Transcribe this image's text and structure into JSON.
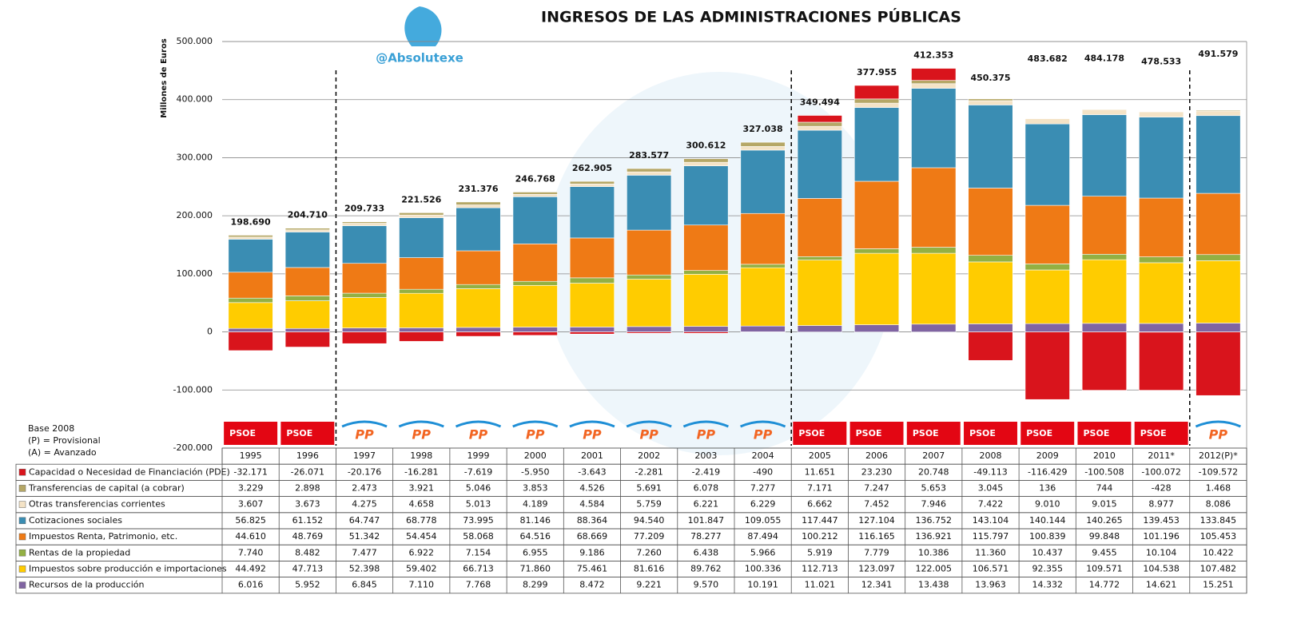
{
  "chart_data": {
    "type": "stacked_bar",
    "title": "INGRESOS DE LAS ADMINISTRACIONES PÚBLICAS",
    "ylabel": "Millones de Euros",
    "watermark": "@Absolutexe",
    "notes": [
      "Base 2008",
      "(P) = Provisional",
      "(A) = Avanzado"
    ],
    "categories": [
      "1995",
      "1996",
      "1997",
      "1998",
      "1999",
      "2000",
      "2001",
      "2002",
      "2003",
      "2004",
      "2005",
      "2006",
      "2007",
      "2008",
      "2009",
      "2010",
      "2011*",
      "2012(P)*"
    ],
    "parties": [
      "PSOE",
      "PSOE",
      "PP",
      "PP",
      "PP",
      "PP",
      "PP",
      "PP",
      "PP",
      "PP",
      "PSOE",
      "PSOE",
      "PSOE",
      "PSOE",
      "PSOE",
      "PSOE",
      "PSOE",
      "PP"
    ],
    "ylim": [
      -200000,
      500000
    ],
    "yticks": [
      {
        "value": -200000,
        "label": "-200.000"
      },
      {
        "value": -100000,
        "label": "-100.000"
      },
      0,
      {
        "value": 100000,
        "label": "100.000"
      },
      {
        "value": 200000,
        "label": "200.000"
      },
      {
        "value": 300000,
        "label": "300.000"
      },
      {
        "value": 400000,
        "label": "400.000"
      },
      {
        "value": 500000,
        "label": "500.000"
      }
    ],
    "grid": true,
    "totals": {
      "values": [
        198690,
        204710,
        209733,
        221526,
        231376,
        246768,
        262905,
        283577,
        300612,
        327038,
        349494,
        377955,
        412353,
        450375,
        483682,
        484178,
        478533,
        491579
      ],
      "value_labels": [
        "198.690",
        "204.710",
        "209.733",
        "221.526",
        "231.376",
        "246.768",
        "262.905",
        "283.577",
        "300.612",
        "327.038",
        "349.494",
        "377.955",
        "412.353",
        "450.375",
        "483.682",
        "484.178",
        "478.533",
        "491.579"
      ]
    },
    "series": [
      {
        "name": "Capacidad o Necesidad de Financiación (PDE)",
        "color": "#d9141c",
        "values": [
          -32171,
          -26071,
          -20176,
          -16281,
          -7619,
          -5950,
          -3643,
          -2281,
          -2419,
          -490,
          11651,
          23230,
          20748,
          -49113,
          -116429,
          -100508,
          -100072,
          -109572
        ],
        "value_labels": [
          "-32.171",
          "-26.071",
          "-20.176",
          "-16.281",
          "-7.619",
          "-5.950",
          "-3.643",
          "-2.281",
          "-2.419",
          "-490",
          "11.651",
          "23.230",
          "20.748",
          "-49.113",
          "-116.429",
          "-100.508",
          "-100.072",
          "-109.572"
        ]
      },
      {
        "name": "Transferencias de capital (a cobrar)",
        "color": "#b5a766",
        "values": [
          3229,
          2898,
          2473,
          3921,
          5046,
          3853,
          4526,
          5691,
          6078,
          7277,
          7171,
          7247,
          5653,
          3045,
          136,
          744,
          -428,
          1468
        ],
        "value_labels": [
          "3.229",
          "2.898",
          "2.473",
          "3.921",
          "5.046",
          "3.853",
          "4.526",
          "5.691",
          "6.078",
          "7.277",
          "7.171",
          "7.247",
          "5.653",
          "3.045",
          "136",
          "744",
          "-428",
          "1.468"
        ]
      },
      {
        "name": "Otras transferencias corrientes",
        "color": "#f4e3c6",
        "values": [
          3607,
          3673,
          4275,
          4658,
          5013,
          4189,
          4584,
          5759,
          6221,
          6229,
          6662,
          7452,
          7946,
          7422,
          9010,
          9015,
          8977,
          8086
        ],
        "value_labels": [
          "3.607",
          "3.673",
          "4.275",
          "4.658",
          "5.013",
          "4.189",
          "4.584",
          "5.759",
          "6.221",
          "6.229",
          "6.662",
          "7.452",
          "7.946",
          "7.422",
          "9.010",
          "9.015",
          "8.977",
          "8.086"
        ]
      },
      {
        "name": "Cotizaciones sociales",
        "color": "#3a8db3",
        "values": [
          56825,
          61152,
          64747,
          68778,
          73995,
          81146,
          88364,
          94540,
          101847,
          109055,
          117447,
          127104,
          136752,
          143104,
          140144,
          140265,
          139453,
          133845
        ],
        "value_labels": [
          "56.825",
          "61.152",
          "64.747",
          "68.778",
          "73.995",
          "81.146",
          "88.364",
          "94.540",
          "101.847",
          "109.055",
          "117.447",
          "127.104",
          "136.752",
          "143.104",
          "140.144",
          "140.265",
          "139.453",
          "133.845"
        ]
      },
      {
        "name": "Impuestos Renta, Patrimonio, etc.",
        "color": "#ef7a15",
        "values": [
          44610,
          48769,
          51342,
          54454,
          58068,
          64516,
          68669,
          77209,
          78277,
          87494,
          100212,
          116165,
          136921,
          115797,
          100839,
          99848,
          101196,
          105453
        ],
        "value_labels": [
          "44.610",
          "48.769",
          "51.342",
          "54.454",
          "58.068",
          "64.516",
          "68.669",
          "77.209",
          "78.277",
          "87.494",
          "100.212",
          "116.165",
          "136.921",
          "115.797",
          "100.839",
          "99.848",
          "101.196",
          "105.453"
        ]
      },
      {
        "name": "Rentas de la propiedad",
        "color": "#93b043",
        "values": [
          7740,
          8482,
          7477,
          6922,
          7154,
          6955,
          9186,
          7260,
          6438,
          5966,
          5919,
          7779,
          10386,
          11360,
          10437,
          9455,
          10104,
          10422
        ],
        "value_labels": [
          "7.740",
          "8.482",
          "7.477",
          "6.922",
          "7.154",
          "6.955",
          "9.186",
          "7.260",
          "6.438",
          "5.966",
          "5.919",
          "7.779",
          "10.386",
          "11.360",
          "10.437",
          "9.455",
          "10.104",
          "10.422"
        ]
      },
      {
        "name": "Impuestos sobre producción e importaciones",
        "color": "#ffcc00",
        "values": [
          44492,
          47713,
          52398,
          59402,
          66713,
          71860,
          75461,
          81616,
          89762,
          100336,
          112713,
          123097,
          122005,
          106571,
          92355,
          109571,
          104538,
          107482
        ],
        "value_labels": [
          "44.492",
          "47.713",
          "52.398",
          "59.402",
          "66.713",
          "71.860",
          "75.461",
          "81.616",
          "89.762",
          "100.336",
          "112.713",
          "123.097",
          "122.005",
          "106.571",
          "92.355",
          "109.571",
          "104.538",
          "107.482"
        ]
      },
      {
        "name": "Recursos de la producción",
        "color": "#8064a2",
        "values": [
          6016,
          5952,
          6845,
          7110,
          7768,
          8299,
          8472,
          9221,
          9570,
          10191,
          11021,
          12341,
          13438,
          13963,
          14332,
          14772,
          14621,
          15251
        ],
        "value_labels": [
          "6.016",
          "5.952",
          "6.845",
          "7.110",
          "7.768",
          "8.299",
          "8.472",
          "9.221",
          "9.570",
          "10.191",
          "11.021",
          "12.341",
          "13.438",
          "13.963",
          "14.332",
          "14.772",
          "14.621",
          "15.251"
        ]
      }
    ]
  }
}
